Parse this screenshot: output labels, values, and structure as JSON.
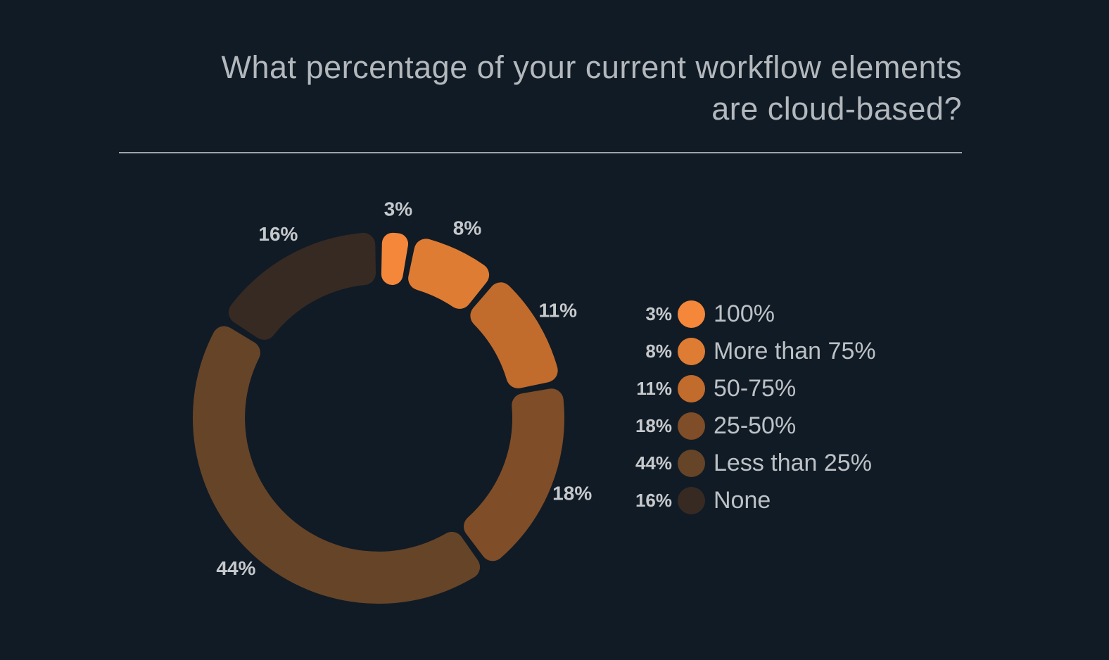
{
  "background_color": "#111B25",
  "title": {
    "text": "What percentage of your current workflow elements are cloud-based?",
    "lines": [
      "What percentage of your current workflow elements",
      "are cloud-based?"
    ],
    "color": "#B3B8BD"
  },
  "divider_color": "#9DA4AA",
  "chart_data": {
    "type": "pie",
    "subtype": "donut",
    "title": "What percentage of your current workflow elements are cloud-based?",
    "unit": "percent",
    "direction": "clockwise",
    "start_angle_deg": 0,
    "legend_position": "right",
    "categories": [
      "100%",
      "More than 75%",
      "50-75%",
      "25-50%",
      "Less than 25%",
      "None"
    ],
    "values": [
      3,
      8,
      11,
      18,
      44,
      16
    ],
    "segments": [
      {
        "label": "100%",
        "value": 3,
        "value_label": "3%",
        "color": "#F4873A"
      },
      {
        "label": "More than 75%",
        "value": 8,
        "value_label": "8%",
        "color": "#DF7C33"
      },
      {
        "label": "50-75%",
        "value": 11,
        "value_label": "11%",
        "color": "#C16B2C"
      },
      {
        "label": "25-50%",
        "value": 18,
        "value_label": "18%",
        "color": "#7F4D27"
      },
      {
        "label": "Less than 25%",
        "value": 44,
        "value_label": "44%",
        "color": "#664428"
      },
      {
        "label": "None",
        "value": 16,
        "value_label": "16%",
        "color": "#372A23"
      }
    ],
    "value_label_color": "#C6C9CC",
    "legend_text_color": "#BCC1C5"
  }
}
